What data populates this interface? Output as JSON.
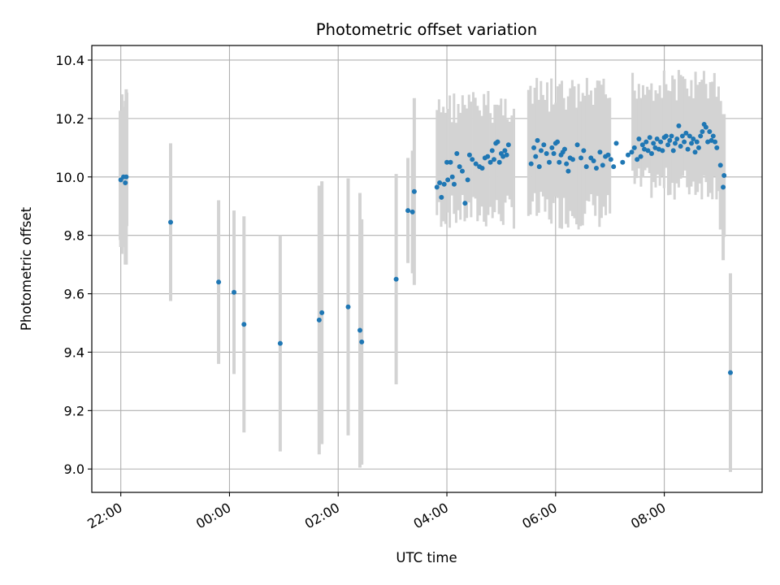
{
  "chart_data": {
    "type": "scatter",
    "title": "Photometric offset variation",
    "xlabel": "UTC time",
    "ylabel": "Photometric offset",
    "x_axis_kind": "time",
    "xlim": [
      "21:28",
      "09:48"
    ],
    "ylim": [
      8.92,
      10.45
    ],
    "x_ticks": [
      "22:00",
      "00:00",
      "02:00",
      "04:00",
      "06:00",
      "08:00"
    ],
    "y_ticks": [
      "9.0",
      "9.2",
      "9.4",
      "9.6",
      "9.8",
      "10.0",
      "10.2",
      "10.4"
    ],
    "grid": true,
    "legend": "none",
    "colors": {
      "point": "#1f77b4",
      "errorbar": "#d3d3d3",
      "grid": "#b0b0b0"
    },
    "errorbar_dense_spans": [
      {
        "start": "21:59",
        "end": "22:07",
        "y_low": 9.7,
        "y_high": 10.3
      },
      {
        "start": "03:49",
        "end": "05:14",
        "y_low": 9.82,
        "y_high": 10.3
      },
      {
        "start": "05:30",
        "end": "07:00",
        "y_low": 9.82,
        "y_high": 10.34
      },
      {
        "start": "07:25",
        "end": "09:00",
        "y_low": 9.92,
        "y_high": 10.37
      }
    ],
    "points": [
      {
        "x": "22:00",
        "y": 9.99,
        "yerr": 0.23
      },
      {
        "x": "22:03",
        "y": 10.0,
        "yerr": 0.24
      },
      {
        "x": "22:05",
        "y": 9.98,
        "yerr": 0.28
      },
      {
        "x": "22:06",
        "y": 10.0,
        "yerr": 0.3
      },
      {
        "x": "22:55",
        "y": 9.845,
        "yerr": 0.27
      },
      {
        "x": "23:48",
        "y": 9.64,
        "yerr": 0.28
      },
      {
        "x": "00:05",
        "y": 9.605,
        "yerr": 0.28
      },
      {
        "x": "00:16",
        "y": 9.495,
        "yerr": 0.37
      },
      {
        "x": "00:56",
        "y": 9.43,
        "yerr": 0.37
      },
      {
        "x": "01:39",
        "y": 9.51,
        "yerr": 0.46
      },
      {
        "x": "01:42",
        "y": 9.535,
        "yerr": 0.45
      },
      {
        "x": "02:11",
        "y": 9.555,
        "yerr": 0.44
      },
      {
        "x": "02:24",
        "y": 9.475,
        "yerr": 0.47
      },
      {
        "x": "02:26",
        "y": 9.435,
        "yerr": 0.42
      },
      {
        "x": "03:04",
        "y": 9.65,
        "yerr": 0.36
      },
      {
        "x": "03:17",
        "y": 9.885,
        "yerr": 0.18
      },
      {
        "x": "03:22",
        "y": 9.88,
        "yerr": 0.21
      },
      {
        "x": "03:24",
        "y": 9.95,
        "yerr": 0.32
      },
      {
        "x": "03:49",
        "y": 9.965
      },
      {
        "x": "03:52",
        "y": 9.98
      },
      {
        "x": "03:54",
        "y": 9.93
      },
      {
        "x": "03:57",
        "y": 9.975
      },
      {
        "x": "04:00",
        "y": 10.05
      },
      {
        "x": "04:01",
        "y": 9.99
      },
      {
        "x": "04:04",
        "y": 10.05
      },
      {
        "x": "04:06",
        "y": 10.0
      },
      {
        "x": "04:08",
        "y": 9.975
      },
      {
        "x": "04:11",
        "y": 10.08
      },
      {
        "x": "04:14",
        "y": 10.035
      },
      {
        "x": "04:17",
        "y": 10.02
      },
      {
        "x": "04:20",
        "y": 9.91
      },
      {
        "x": "04:23",
        "y": 9.99
      },
      {
        "x": "04:25",
        "y": 10.075
      },
      {
        "x": "04:28",
        "y": 10.06
      },
      {
        "x": "04:32",
        "y": 10.045
      },
      {
        "x": "04:36",
        "y": 10.035
      },
      {
        "x": "04:39",
        "y": 10.03
      },
      {
        "x": "04:42",
        "y": 10.065
      },
      {
        "x": "04:45",
        "y": 10.07
      },
      {
        "x": "04:48",
        "y": 10.05
      },
      {
        "x": "04:50",
        "y": 10.09
      },
      {
        "x": "04:52",
        "y": 10.06
      },
      {
        "x": "04:54",
        "y": 10.115
      },
      {
        "x": "04:56",
        "y": 10.12
      },
      {
        "x": "04:58",
        "y": 10.05
      },
      {
        "x": "05:00",
        "y": 10.08
      },
      {
        "x": "05:02",
        "y": 10.07
      },
      {
        "x": "05:04",
        "y": 10.09
      },
      {
        "x": "05:06",
        "y": 10.075
      },
      {
        "x": "05:08",
        "y": 10.11
      },
      {
        "x": "05:33",
        "y": 10.045
      },
      {
        "x": "05:36",
        "y": 10.1
      },
      {
        "x": "05:38",
        "y": 10.07
      },
      {
        "x": "05:40",
        "y": 10.125
      },
      {
        "x": "05:42",
        "y": 10.035
      },
      {
        "x": "05:44",
        "y": 10.09
      },
      {
        "x": "05:47",
        "y": 10.11
      },
      {
        "x": "05:50",
        "y": 10.08
      },
      {
        "x": "05:53",
        "y": 10.05
      },
      {
        "x": "05:56",
        "y": 10.1
      },
      {
        "x": "05:58",
        "y": 10.08
      },
      {
        "x": "06:00",
        "y": 10.115
      },
      {
        "x": "06:02",
        "y": 10.12
      },
      {
        "x": "06:04",
        "y": 10.05
      },
      {
        "x": "06:06",
        "y": 10.075
      },
      {
        "x": "06:08",
        "y": 10.085
      },
      {
        "x": "06:10",
        "y": 10.095
      },
      {
        "x": "06:12",
        "y": 10.045
      },
      {
        "x": "06:14",
        "y": 10.02
      },
      {
        "x": "06:16",
        "y": 10.065
      },
      {
        "x": "06:19",
        "y": 10.06
      },
      {
        "x": "06:24",
        "y": 10.11
      },
      {
        "x": "06:28",
        "y": 10.065
      },
      {
        "x": "06:31",
        "y": 10.09
      },
      {
        "x": "06:34",
        "y": 10.035
      },
      {
        "x": "06:39",
        "y": 10.065
      },
      {
        "x": "06:42",
        "y": 10.055
      },
      {
        "x": "06:45",
        "y": 10.03
      },
      {
        "x": "06:49",
        "y": 10.085
      },
      {
        "x": "06:52",
        "y": 10.04
      },
      {
        "x": "06:55",
        "y": 10.07
      },
      {
        "x": "06:58",
        "y": 10.075
      },
      {
        "x": "07:01",
        "y": 10.06
      },
      {
        "x": "07:04",
        "y": 10.035
      },
      {
        "x": "07:07",
        "y": 10.115
      },
      {
        "x": "07:14",
        "y": 10.05
      },
      {
        "x": "07:20",
        "y": 10.075
      },
      {
        "x": "07:24",
        "y": 10.085
      },
      {
        "x": "07:27",
        "y": 10.1
      },
      {
        "x": "07:30",
        "y": 10.06
      },
      {
        "x": "07:32",
        "y": 10.13
      },
      {
        "x": "07:34",
        "y": 10.07
      },
      {
        "x": "07:36",
        "y": 10.11
      },
      {
        "x": "07:38",
        "y": 10.095
      },
      {
        "x": "07:40",
        "y": 10.12
      },
      {
        "x": "07:42",
        "y": 10.09
      },
      {
        "x": "07:44",
        "y": 10.135
      },
      {
        "x": "07:46",
        "y": 10.08
      },
      {
        "x": "07:48",
        "y": 10.115
      },
      {
        "x": "07:50",
        "y": 10.1
      },
      {
        "x": "07:52",
        "y": 10.13
      },
      {
        "x": "07:54",
        "y": 10.095
      },
      {
        "x": "07:56",
        "y": 10.12
      },
      {
        "x": "07:58",
        "y": 10.09
      },
      {
        "x": "08:00",
        "y": 10.135
      },
      {
        "x": "08:02",
        "y": 10.14
      },
      {
        "x": "08:04",
        "y": 10.11
      },
      {
        "x": "08:06",
        "y": 10.125
      },
      {
        "x": "08:08",
        "y": 10.14
      },
      {
        "x": "08:10",
        "y": 10.09
      },
      {
        "x": "08:12",
        "y": 10.115
      },
      {
        "x": "08:14",
        "y": 10.13
      },
      {
        "x": "08:16",
        "y": 10.175
      },
      {
        "x": "08:18",
        "y": 10.105
      },
      {
        "x": "08:20",
        "y": 10.14
      },
      {
        "x": "08:22",
        "y": 10.12
      },
      {
        "x": "08:24",
        "y": 10.15
      },
      {
        "x": "08:26",
        "y": 10.095
      },
      {
        "x": "08:28",
        "y": 10.14
      },
      {
        "x": "08:30",
        "y": 10.115
      },
      {
        "x": "08:32",
        "y": 10.13
      },
      {
        "x": "08:34",
        "y": 10.085
      },
      {
        "x": "08:36",
        "y": 10.12
      },
      {
        "x": "08:38",
        "y": 10.1
      },
      {
        "x": "08:40",
        "y": 10.14
      },
      {
        "x": "08:42",
        "y": 10.155
      },
      {
        "x": "08:44",
        "y": 10.18
      },
      {
        "x": "08:46",
        "y": 10.17
      },
      {
        "x": "08:48",
        "y": 10.12
      },
      {
        "x": "08:50",
        "y": 10.155
      },
      {
        "x": "08:52",
        "y": 10.125
      },
      {
        "x": "08:54",
        "y": 10.14
      },
      {
        "x": "08:56",
        "y": 10.12
      },
      {
        "x": "08:58",
        "y": 10.1
      },
      {
        "x": "09:02",
        "y": 10.04,
        "yerr": 0.22
      },
      {
        "x": "09:06",
        "y": 10.005,
        "yerr": 0.21
      },
      {
        "x": "09:05",
        "y": 9.965,
        "yerr": 0.25
      },
      {
        "x": "09:13",
        "y": 9.33,
        "yerr": 0.34
      }
    ]
  }
}
